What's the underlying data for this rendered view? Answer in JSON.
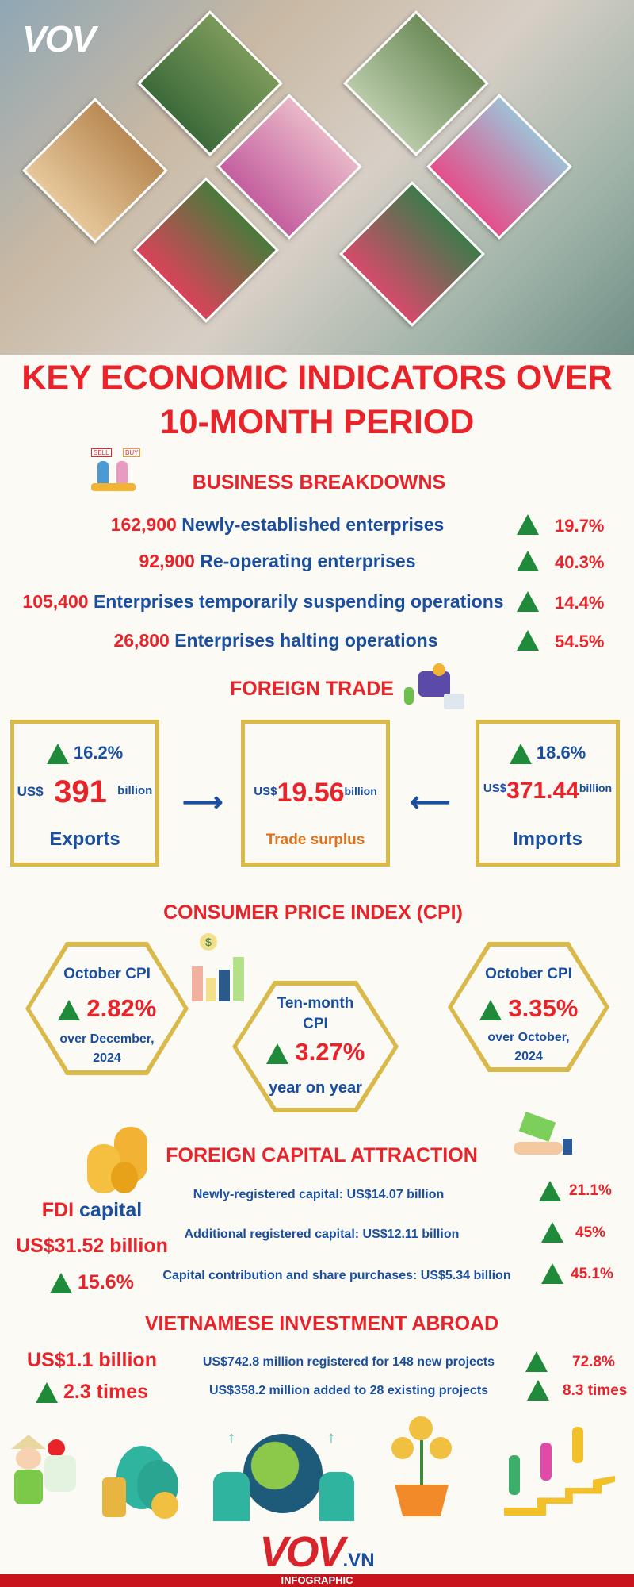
{
  "brand": {
    "logo": "VOV",
    "footer_logo": "VOV",
    "footer_domain": ".VN",
    "footer_band": "INFOGRAPHIC"
  },
  "title": {
    "line1": "KEY ECONOMIC INDICATORS OVER",
    "line2": "10-MONTH PERIOD"
  },
  "business": {
    "heading": "BUSINESS BREAKDOWNS",
    "icon_labels": [
      "SELL",
      "BUY"
    ],
    "rows": [
      {
        "number": "162,900",
        "label": "Newly-established enterprises",
        "change": "19.7%"
      },
      {
        "number": "92,900",
        "label": "Re-operating enterprises",
        "change": "40.3%"
      },
      {
        "number": "105,400",
        "label": "Enterprises temporarily suspending operations",
        "change": "14.4%"
      },
      {
        "number": "26,800",
        "label": "Enterprises halting operations",
        "change": "54.5%"
      }
    ]
  },
  "trade": {
    "heading": "FOREIGN TRADE",
    "exports": {
      "change": "16.2%",
      "currency": "US$",
      "value": "391",
      "unit": "billion",
      "label": "Exports"
    },
    "surplus": {
      "currency": "US$",
      "value": "19.56",
      "unit": "billion",
      "label": "Trade surplus"
    },
    "imports": {
      "change": "18.6%",
      "currency": "US$",
      "value": "371.44",
      "unit": "billion",
      "label": "Imports"
    }
  },
  "cpi": {
    "heading": "CONSUMER PRICE INDEX (CPI)",
    "items": [
      {
        "title": "October CPI",
        "value": "2.82%",
        "sub1": "over December,",
        "sub2": "2024"
      },
      {
        "title1": "Ten-month",
        "title2": "CPI",
        "value": "3.27%",
        "sub1": "year on year"
      },
      {
        "title": "October CPI",
        "value": "3.35%",
        "sub1": "over October,",
        "sub2": "2024"
      }
    ]
  },
  "fdi": {
    "heading": "FOREIGN CAPITAL ATTRACTION",
    "label_red": "FDI",
    "label_blue": "capital",
    "total": "US$31.52 billion",
    "total_change": "15.6%",
    "rows": [
      {
        "label": "Newly-registered capital: US$14.07 billion",
        "change": "21.1%"
      },
      {
        "label": "Additional registered capital: US$12.11 billion",
        "change": "45%"
      },
      {
        "label": "Capital contribution and share purchases: US$5.34 billion",
        "change": "45.1%"
      }
    ]
  },
  "abroad": {
    "heading": "VIETNAMESE INVESTMENT ABROAD",
    "total": "US$1.1 billion",
    "total_change": "2.3 times",
    "rows": [
      {
        "label": "US$742.8 million registered for 148 new projects",
        "change": "72.8%"
      },
      {
        "label": "US$358.2 million added to 28 existing projects",
        "change": "8.3 times"
      }
    ]
  },
  "colors": {
    "red": "#e8232a",
    "blue": "#1a4fa0",
    "green": "#1e8a3a",
    "gold": "#d9b94a"
  }
}
